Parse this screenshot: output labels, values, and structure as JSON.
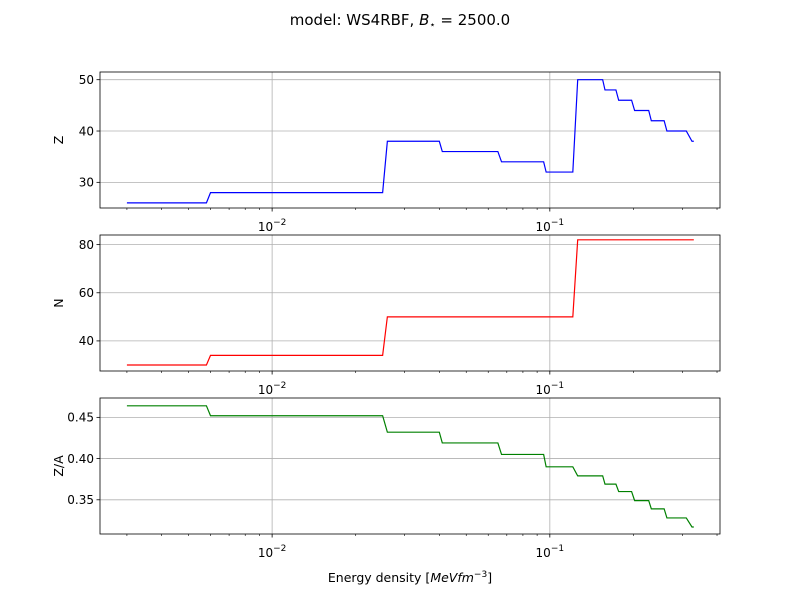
{
  "figure": {
    "suptitle_prefix": "model: WS4RBF, ",
    "suptitle_var": "B",
    "suptitle_sub": "⋆",
    "suptitle_suffix": " = 2500.0"
  },
  "chart_data": [
    {
      "type": "line",
      "xscale": "log",
      "xlim": [
        0.0024,
        0.41
      ],
      "xticks": [
        0.01,
        0.1
      ],
      "xtick_labels": [
        {
          "base": "10",
          "exp": "−2"
        },
        {
          "base": "10",
          "exp": "−1"
        }
      ],
      "ylim": [
        25,
        51.5
      ],
      "yticks": [
        30,
        40,
        50
      ],
      "ytick_labels": [
        "30",
        "40",
        "50"
      ],
      "ylabel": "Z",
      "xlabel": "",
      "grid": true,
      "series": [
        {
          "color": "#0000ff",
          "x": [
            0.003,
            0.0058,
            0.006,
            0.025,
            0.026,
            0.04,
            0.041,
            0.065,
            0.067,
            0.095,
            0.097,
            0.121,
            0.126,
            0.155,
            0.158,
            0.173,
            0.177,
            0.197,
            0.202,
            0.227,
            0.232,
            0.258,
            0.264,
            0.3,
            0.31,
            0.325,
            0.33
          ],
          "y": [
            26,
            26,
            28,
            28,
            38,
            38,
            36,
            36,
            34,
            34,
            32,
            32,
            50,
            50,
            48,
            48,
            46,
            46,
            44,
            44,
            42,
            42,
            40,
            40,
            40,
            38,
            38
          ]
        }
      ]
    },
    {
      "type": "line",
      "xscale": "log",
      "xlim": [
        0.0024,
        0.41
      ],
      "xticks": [
        0.01,
        0.1
      ],
      "xtick_labels": [
        {
          "base": "10",
          "exp": "−2"
        },
        {
          "base": "10",
          "exp": "−1"
        }
      ],
      "ylim": [
        27.5,
        84
      ],
      "yticks": [
        40,
        60,
        80
      ],
      "ytick_labels": [
        "40",
        "60",
        "80"
      ],
      "ylabel": "N",
      "xlabel": "",
      "grid": true,
      "series": [
        {
          "color": "#ff0000",
          "x": [
            0.003,
            0.0058,
            0.006,
            0.025,
            0.026,
            0.121,
            0.126,
            0.33
          ],
          "y": [
            30,
            30,
            34,
            34,
            50,
            50,
            82,
            82
          ]
        }
      ]
    },
    {
      "type": "line",
      "xscale": "log",
      "xlim": [
        0.0024,
        0.41
      ],
      "xticks": [
        0.01,
        0.1
      ],
      "xtick_labels": [
        {
          "base": "10",
          "exp": "−2"
        },
        {
          "base": "10",
          "exp": "−1"
        }
      ],
      "ylim": [
        0.3085,
        0.4735
      ],
      "yticks": [
        0.35,
        0.4,
        0.45
      ],
      "ytick_labels": [
        "0.35",
        "0.40",
        "0.45"
      ],
      "ylabel": "Z/A",
      "xlabel_prefix": "Energy density [",
      "xlabel_math": "MeVfm",
      "xlabel_exp": "−3",
      "xlabel_suffix": "]",
      "grid": true,
      "series": [
        {
          "color": "#008000",
          "x": [
            0.003,
            0.0058,
            0.006,
            0.025,
            0.026,
            0.04,
            0.041,
            0.065,
            0.067,
            0.095,
            0.097,
            0.121,
            0.126,
            0.155,
            0.158,
            0.173,
            0.177,
            0.197,
            0.202,
            0.227,
            0.232,
            0.258,
            0.264,
            0.3,
            0.31,
            0.325,
            0.33
          ],
          "y": [
            0.464,
            0.464,
            0.452,
            0.452,
            0.432,
            0.432,
            0.419,
            0.419,
            0.405,
            0.405,
            0.39,
            0.39,
            0.379,
            0.379,
            0.369,
            0.369,
            0.36,
            0.36,
            0.349,
            0.349,
            0.339,
            0.339,
            0.328,
            0.328,
            0.328,
            0.317,
            0.317
          ]
        }
      ]
    }
  ]
}
